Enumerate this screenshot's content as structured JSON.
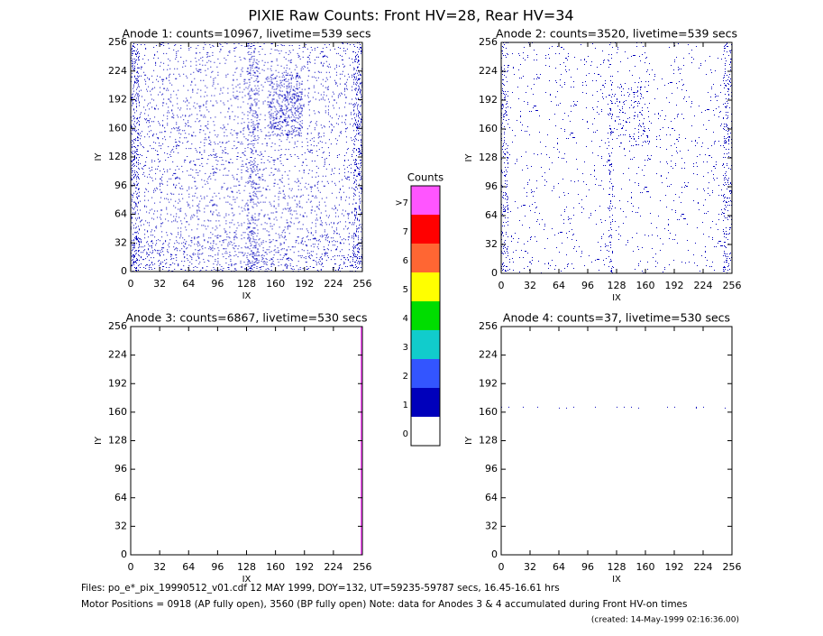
{
  "title": "PIXIE Raw Counts:  Front HV=28, Rear HV=34",
  "chart_data": [
    {
      "type": "heatmap",
      "title": "Anode 1: counts=10967, livetime=539 secs",
      "xlabel": "IX",
      "ylabel": "IY",
      "xlim": [
        0,
        256
      ],
      "ylim": [
        0,
        256
      ],
      "xticks": [
        0,
        32,
        64,
        96,
        128,
        160,
        192,
        224,
        256
      ],
      "yticks": [
        0,
        32,
        64,
        96,
        128,
        160,
        192,
        224,
        256
      ]
    },
    {
      "type": "heatmap",
      "title": "Anode 2: counts=3520, livetime=539 secs",
      "xlabel": "IX",
      "ylabel": "IY",
      "xlim": [
        0,
        256
      ],
      "ylim": [
        0,
        256
      ],
      "xticks": [
        0,
        32,
        64,
        96,
        128,
        160,
        192,
        224,
        256
      ],
      "yticks": [
        0,
        32,
        64,
        96,
        128,
        160,
        192,
        224,
        256
      ]
    },
    {
      "type": "heatmap",
      "title": "Anode 3: counts=6867, livetime=530 secs",
      "xlabel": "IX",
      "ylabel": "IY",
      "xlim": [
        0,
        256
      ],
      "ylim": [
        0,
        256
      ],
      "xticks": [
        0,
        32,
        64,
        96,
        128,
        160,
        192,
        224,
        256
      ],
      "yticks": [
        0,
        32,
        64,
        96,
        128,
        160,
        192,
        224,
        256
      ]
    },
    {
      "type": "heatmap",
      "title": "Anode 4: counts=37, livetime=530 secs",
      "xlabel": "IX",
      "ylabel": "IY",
      "xlim": [
        0,
        256
      ],
      "ylim": [
        0,
        256
      ],
      "xticks": [
        0,
        32,
        64,
        96,
        128,
        160,
        192,
        224,
        256
      ],
      "yticks": [
        0,
        32,
        64,
        96,
        128,
        160,
        192,
        224,
        256
      ]
    }
  ],
  "colorbar": {
    "title": "Counts",
    "labels": [
      ">7",
      "7",
      "6",
      "5",
      "4",
      "3",
      "2",
      "1",
      "0"
    ],
    "colors": [
      "#ff55ff",
      "#ff0000",
      "#ff6633",
      "#ffff00",
      "#00dd00",
      "#11cccc",
      "#3355ff",
      "#0000bb",
      "#ffffff"
    ]
  },
  "footer": [
    "Files: po_e*_pix_19990512_v01.cdf    12 MAY 1999, DOY=132, UT=59235-59787 secs, 16.45-16.61 hrs",
    "Motor Positions = 0918 (AP fully open), 3560 (BP fully open)    Note: data for Anodes 3 & 4 accumulated during Front HV-on times",
    "(created: 14-May-1999 02:16:36.00)"
  ]
}
